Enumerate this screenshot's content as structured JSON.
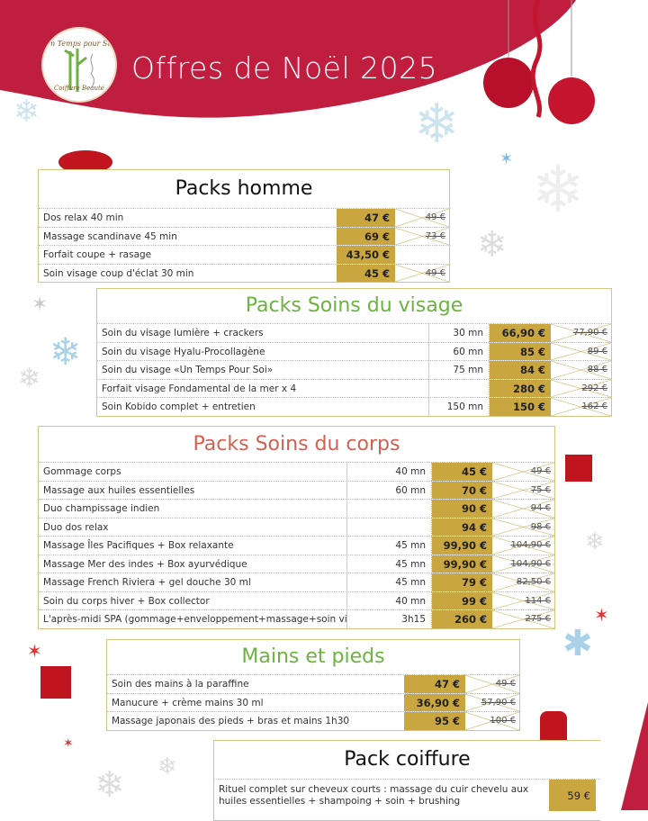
{
  "header": {
    "title": "Offres de Noël 2025",
    "logo_top": "Un Temps pour Soi",
    "logo_bottom": "Coiffure   Beauté"
  },
  "colors": {
    "red": "#c01e3e",
    "gold": "#c9a640",
    "green": "#6cb33f",
    "coral": "#d5604f"
  },
  "sections": [
    {
      "title": "Packs homme",
      "items": [
        {
          "desc": "Dos relax 40 min",
          "price": "47 €",
          "old": "49 €"
        },
        {
          "desc": "Massage scandinave 45 min",
          "price": "69 €",
          "old": "73 €"
        },
        {
          "desc": "Forfait coupe + rasage",
          "price": "43,50 €",
          "old": ""
        },
        {
          "desc": "Soin visage coup d'éclat 30 min",
          "price": "45 €",
          "old": "49 €"
        }
      ]
    },
    {
      "title": "Packs Soins du visage",
      "items": [
        {
          "desc": "Soin du visage lumière + crackers",
          "dur": "30 mn",
          "price": "66,90 €",
          "old": "77,90 €"
        },
        {
          "desc": "Soin du visage Hyalu-Procollagène",
          "dur": "60 mn",
          "price": "85 €",
          "old": "89 €"
        },
        {
          "desc": "Soin du visage «Un Temps Pour Soi»",
          "dur": "75 mn",
          "price": "84 €",
          "old": "88 €"
        },
        {
          "desc": "Forfait visage Fondamental de la mer x 4",
          "dur": "",
          "price": "280 €",
          "old": "292 €"
        },
        {
          "desc": "Soin Kobido complet + entretien",
          "dur": "150 mn",
          "price": "150 €",
          "old": "162 €"
        }
      ]
    },
    {
      "title": "Packs Soins du corps",
      "items": [
        {
          "desc": "Gommage corps",
          "dur": "40 mn",
          "price": "45 €",
          "old": "49 €"
        },
        {
          "desc": "Massage aux huiles essentielles",
          "dur": "60 mn",
          "price": "70 €",
          "old": "75 €"
        },
        {
          "desc": "Duo champissage indien",
          "dur": "",
          "price": "90 €",
          "old": "94 €"
        },
        {
          "desc": "Duo dos relax",
          "dur": "",
          "price": "94 €",
          "old": "98 €"
        },
        {
          "desc": "Massage Îles Pacifiques + Box relaxante",
          "dur": "45 mn",
          "price": "99,90 €",
          "old": "104,90 €"
        },
        {
          "desc": "Massage Mer des indes + Box ayurvédique",
          "dur": "45 mn",
          "price": "99,90 €",
          "old": "104,90 €"
        },
        {
          "desc": "Massage French Riviera + gel douche 30 ml",
          "dur": "45 mn",
          "price": "79 €",
          "old": "82,50 €"
        },
        {
          "desc": "Soin du corps hiver + Box collector",
          "dur": "40 mn",
          "price": "99 €",
          "old": "114 €"
        },
        {
          "desc": "L'après-midi SPA (gommage+enveloppement+massage+soin visage)",
          "dur": "3h15",
          "price": "260 €",
          "old": "275 €"
        }
      ]
    },
    {
      "title": "Mains et pieds",
      "items": [
        {
          "desc": "Soin des mains à la paraffine",
          "price": "47 €",
          "old": "49 €"
        },
        {
          "desc": "Manucure + crème mains 30 ml",
          "price": "36,90 €",
          "old": "57,90 €"
        },
        {
          "desc": "Massage japonais des pieds + bras et mains 1h30",
          "price": "95 €",
          "old": "100 €"
        }
      ]
    },
    {
      "title": "Pack coiffure",
      "items": [
        {
          "desc": "Rituel complet sur cheveux courts : massage du cuir chevelu aux huiles essentielles + shampoing + soin + brushing",
          "price": "59 €"
        }
      ]
    }
  ]
}
